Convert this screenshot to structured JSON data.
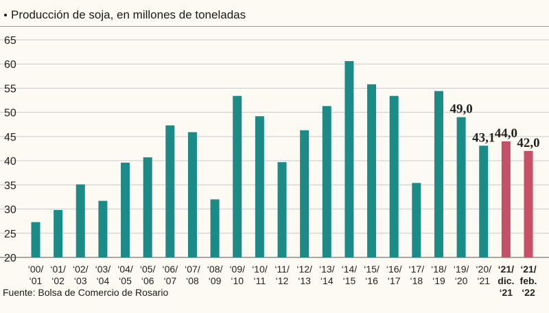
{
  "chart_data": {
    "type": "bar",
    "title": "Producción de soja, en millones de toneladas",
    "source": "Fuente: Bolsa de Comercio de Rosario",
    "xlabel": "",
    "ylabel": "",
    "ylim": [
      20,
      65
    ],
    "yticks": [
      20,
      25,
      30,
      35,
      40,
      45,
      50,
      55,
      60,
      65
    ],
    "grid": true,
    "colors": {
      "actual": "#1c8a86",
      "estimate": "#c65066",
      "grid": "#c9c9c9"
    },
    "categories": [
      {
        "lines": [
          "‘00/",
          "‘01"
        ],
        "value": 27.3
      },
      {
        "lines": [
          "‘01/",
          "‘02"
        ],
        "value": 29.8
      },
      {
        "lines": [
          "‘02/",
          "‘03"
        ],
        "value": 35.1
      },
      {
        "lines": [
          "‘03/",
          "‘04"
        ],
        "value": 31.7
      },
      {
        "lines": [
          "‘04/",
          "‘05"
        ],
        "value": 39.6
      },
      {
        "lines": [
          "‘05/",
          "‘06"
        ],
        "value": 40.7
      },
      {
        "lines": [
          "‘06/",
          "‘07"
        ],
        "value": 47.3
      },
      {
        "lines": [
          "‘07/",
          "‘08"
        ],
        "value": 45.9
      },
      {
        "lines": [
          "‘08/",
          "‘09"
        ],
        "value": 32.0
      },
      {
        "lines": [
          "‘09/",
          "‘10"
        ],
        "value": 53.4
      },
      {
        "lines": [
          "‘10/",
          "‘11"
        ],
        "value": 49.2
      },
      {
        "lines": [
          "‘11/",
          "‘12"
        ],
        "value": 39.7
      },
      {
        "lines": [
          "‘12/",
          "‘13"
        ],
        "value": 46.3
      },
      {
        "lines": [
          "‘13/",
          "‘14"
        ],
        "value": 51.3
      },
      {
        "lines": [
          "‘14/",
          "‘15"
        ],
        "value": 60.6
      },
      {
        "lines": [
          "‘15/",
          "‘16"
        ],
        "value": 55.8
      },
      {
        "lines": [
          "‘16/",
          "‘17"
        ],
        "value": 53.4
      },
      {
        "lines": [
          "‘17/",
          "‘18"
        ],
        "value": 35.4
      },
      {
        "lines": [
          "‘18/",
          "‘19"
        ],
        "value": 54.4
      },
      {
        "lines": [
          "‘19/",
          "‘20"
        ],
        "value": 49.0,
        "label": "49,0"
      },
      {
        "lines": [
          "‘20/",
          "‘21"
        ],
        "value": 43.1,
        "label": "43,1"
      },
      {
        "lines": [
          "‘21/",
          "dic.",
          "‘21"
        ],
        "value": 44.0,
        "label": "44,0",
        "estimate": true
      },
      {
        "lines": [
          "‘21/",
          "feb.",
          "‘22"
        ],
        "value": 42.0,
        "label": "42,0",
        "estimate": true
      }
    ]
  }
}
